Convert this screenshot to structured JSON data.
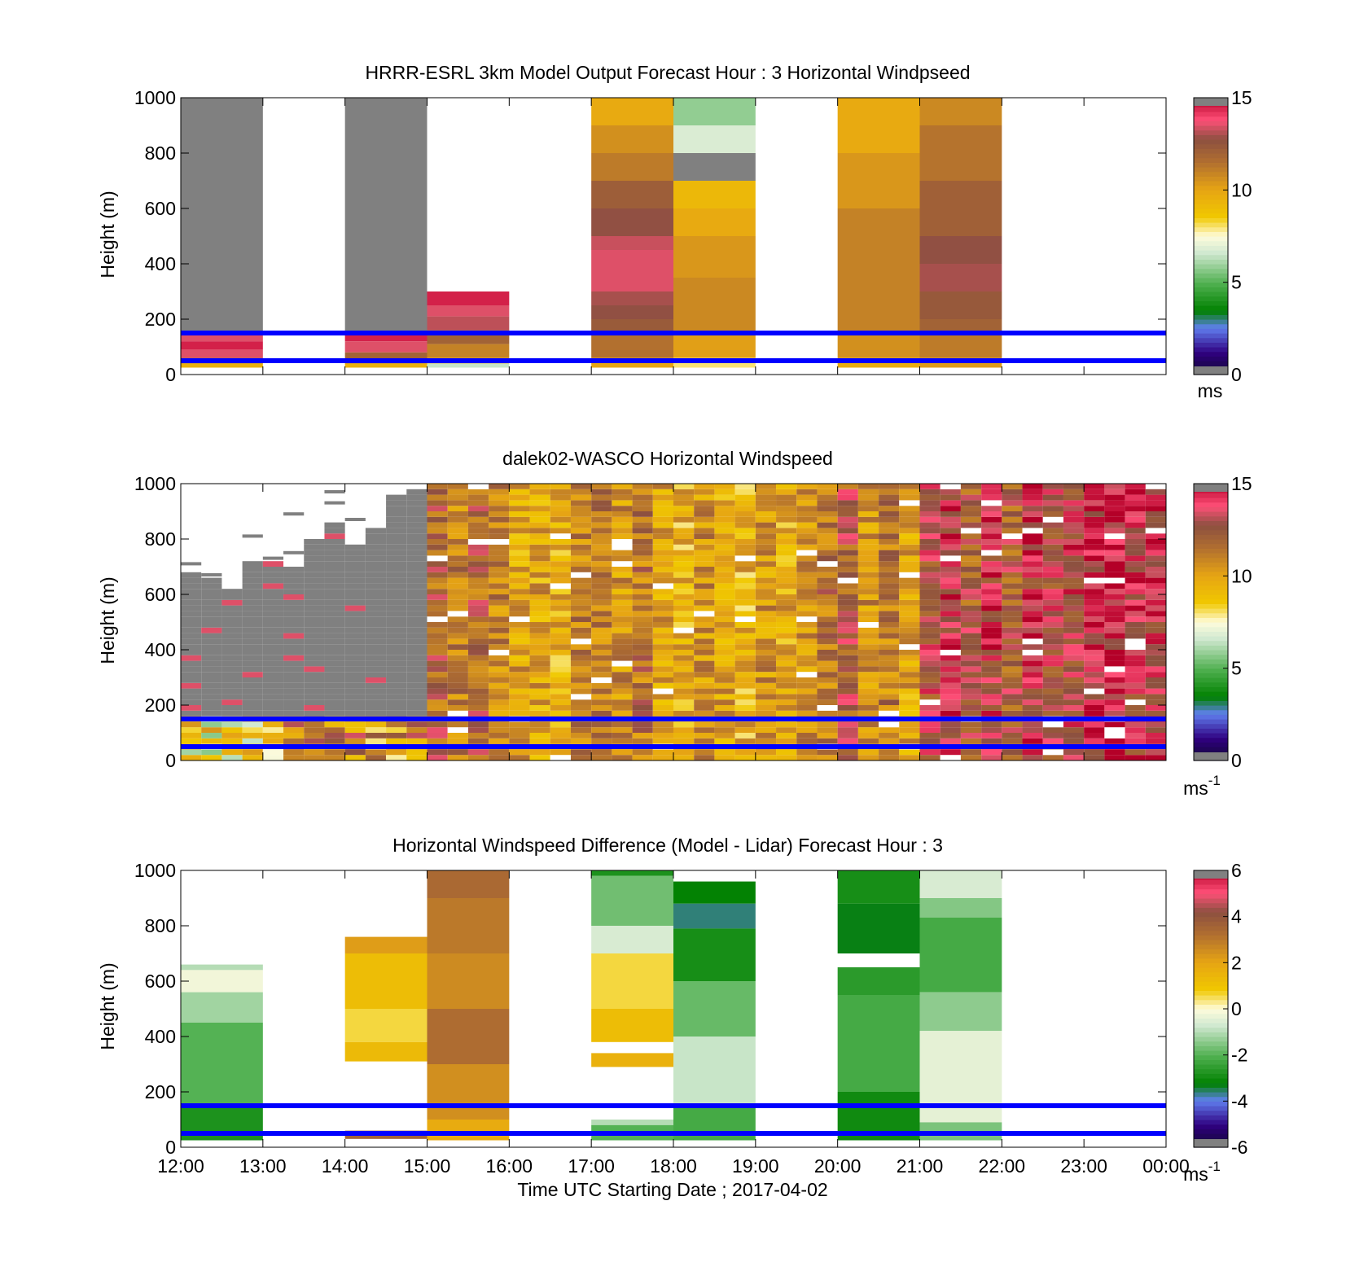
{
  "figure": {
    "xlabel": "Time UTC  Starting Date ; 2017-04-02",
    "x_tick_labels": [
      "12:00",
      "13:00",
      "14:00",
      "15:00",
      "16:00",
      "17:00",
      "18:00",
      "19:00",
      "20:00",
      "21:00",
      "22:00",
      "23:00",
      "00:00"
    ],
    "marker_line_color": "#0000ff"
  },
  "chart_data": [
    {
      "type": "heatmap",
      "title": "HRRR-ESRL 3km Model Output   Forecast Hour : 3 Horizontal Windpseed",
      "ylabel": "Height (m)",
      "ylim": [
        0,
        1000
      ],
      "y_ticks": [
        0,
        200,
        400,
        600,
        800,
        1000
      ],
      "xlim_hours": [
        12,
        24
      ],
      "reference_heights_m": [
        50,
        150
      ],
      "colorbar": {
        "min": 0,
        "max": 15,
        "ticks": [
          0,
          5,
          10,
          15
        ],
        "unit": "ms"
      },
      "columns": [
        {
          "start": "12:00",
          "end": "13:00",
          "segments": [
            {
              "from": 150,
              "to": 1000,
              "value": "missing"
            },
            {
              "from": 120,
              "to": 150,
              "value": 13.5
            },
            {
              "from": 90,
              "to": 120,
              "value": 14.5
            },
            {
              "from": 60,
              "to": 90,
              "value": 13.5
            },
            {
              "from": 40,
              "to": 60,
              "value": 12
            },
            {
              "from": 25,
              "to": 40,
              "value": 9.5
            }
          ]
        },
        {
          "start": "14:00",
          "end": "15:00",
          "segments": [
            {
              "from": 150,
              "to": 1000,
              "value": "missing"
            },
            {
              "from": 120,
              "to": 150,
              "value": 14.5
            },
            {
              "from": 80,
              "to": 120,
              "value": 13.5
            },
            {
              "from": 40,
              "to": 80,
              "value": 12
            },
            {
              "from": 25,
              "to": 40,
              "value": 9.5
            }
          ]
        },
        {
          "start": "15:00",
          "end": "16:00",
          "segments": [
            {
              "from": 250,
              "to": 300,
              "value": 14.5
            },
            {
              "from": 210,
              "to": 250,
              "value": 13.5
            },
            {
              "from": 160,
              "to": 210,
              "value": 13.2
            },
            {
              "from": 110,
              "to": 160,
              "value": 12
            },
            {
              "from": 60,
              "to": 110,
              "value": 11
            },
            {
              "from": 40,
              "to": 60,
              "value": 10
            },
            {
              "from": 25,
              "to": 40,
              "value": 6.5
            }
          ]
        },
        {
          "start": "17:00",
          "end": "18:00",
          "segments": [
            {
              "from": 900,
              "to": 1000,
              "value": 9.8
            },
            {
              "from": 800,
              "to": 900,
              "value": 10.6
            },
            {
              "from": 700,
              "to": 800,
              "value": 11.2
            },
            {
              "from": 600,
              "to": 700,
              "value": 12.2
            },
            {
              "from": 500,
              "to": 600,
              "value": 12.8
            },
            {
              "from": 450,
              "to": 500,
              "value": 13.3
            },
            {
              "from": 300,
              "to": 450,
              "value": 13.5
            },
            {
              "from": 250,
              "to": 300,
              "value": 13
            },
            {
              "from": 200,
              "to": 250,
              "value": 12.8
            },
            {
              "from": 150,
              "to": 200,
              "value": 12.3
            },
            {
              "from": 60,
              "to": 150,
              "value": 11.5
            },
            {
              "from": 25,
              "to": 60,
              "value": 10
            }
          ]
        },
        {
          "start": "18:00",
          "end": "19:00",
          "segments": [
            {
              "from": 900,
              "to": 1000,
              "value": 5.8
            },
            {
              "from": 800,
              "to": 900,
              "value": 6.8
            },
            {
              "from": 700,
              "to": 800,
              "value": "missing"
            },
            {
              "from": 600,
              "to": 700,
              "value": 9.2
            },
            {
              "from": 500,
              "to": 600,
              "value": 9.8
            },
            {
              "from": 350,
              "to": 500,
              "value": 10.4
            },
            {
              "from": 150,
              "to": 350,
              "value": 10.8
            },
            {
              "from": 60,
              "to": 150,
              "value": 10.2
            },
            {
              "from": 25,
              "to": 60,
              "value": 8
            }
          ]
        },
        {
          "start": "20:00",
          "end": "21:00",
          "segments": [
            {
              "from": 800,
              "to": 1000,
              "value": 9.8
            },
            {
              "from": 600,
              "to": 800,
              "value": 10.4
            },
            {
              "from": 150,
              "to": 600,
              "value": 11
            },
            {
              "from": 60,
              "to": 150,
              "value": 10.6
            },
            {
              "from": 25,
              "to": 60,
              "value": 9.7
            }
          ]
        },
        {
          "start": "21:00",
          "end": "22:00",
          "segments": [
            {
              "from": 900,
              "to": 1000,
              "value": 10.8
            },
            {
              "from": 700,
              "to": 900,
              "value": 11.4
            },
            {
              "from": 500,
              "to": 700,
              "value": 12.1
            },
            {
              "from": 400,
              "to": 500,
              "value": 12.8
            },
            {
              "from": 300,
              "to": 400,
              "value": 13
            },
            {
              "from": 200,
              "to": 300,
              "value": 12.4
            },
            {
              "from": 150,
              "to": 200,
              "value": 12
            },
            {
              "from": 60,
              "to": 150,
              "value": 11.2
            },
            {
              "from": 25,
              "to": 60,
              "value": 10.3
            }
          ]
        }
      ]
    },
    {
      "type": "heatmap",
      "title": "dalek02-WASCO  Horizontal Windspeed",
      "ylabel": "Height (m)",
      "ylim": [
        0,
        1000
      ],
      "y_ticks": [
        0,
        200,
        400,
        600,
        800,
        1000
      ],
      "xlim_hours": [
        12,
        24
      ],
      "reference_heights_m": [
        50,
        150
      ],
      "colorbar": {
        "min": 0,
        "max": 15,
        "ticks": [
          0,
          5,
          10,
          15
        ],
        "unit": "ms",
        "unit_exponent": "-1"
      },
      "column_width_hours": 0.25,
      "columns": [
        {
          "start": "12:00",
          "top": 680,
          "base": 8
        },
        {
          "start": "12:15",
          "top": 670,
          "base": 8
        },
        {
          "start": "12:30",
          "top": 630,
          "base": 8
        },
        {
          "start": "12:45",
          "top": 720,
          "base": 8
        },
        {
          "start": "13:00",
          "top": 730,
          "base": 8
        },
        {
          "start": "13:15",
          "top": 700,
          "base": 12
        },
        {
          "start": "13:30",
          "top": 800,
          "base": 11
        },
        {
          "start": "13:45",
          "top": 860,
          "base": 11
        },
        {
          "start": "14:00",
          "top": 790,
          "base": 11
        },
        {
          "start": "14:15",
          "top": 840,
          "base": 10
        },
        {
          "start": "14:30",
          "top": 970,
          "base": 10
        },
        {
          "start": "14:45",
          "top": 990,
          "base": 11
        },
        {
          "start": "15:00",
          "top": 1000,
          "base": 12
        },
        {
          "start": "15:15",
          "top": 1000,
          "base": 11
        },
        {
          "start": "15:30",
          "top": 1000,
          "base": 12
        },
        {
          "start": "15:45",
          "top": 1000,
          "base": 11
        },
        {
          "start": "16:00",
          "top": 1000,
          "base": 10
        },
        {
          "start": "16:15",
          "top": 1000,
          "base": 10
        },
        {
          "start": "16:30",
          "top": 1000,
          "base": 9.5
        },
        {
          "start": "16:45",
          "top": 1000,
          "base": 11
        },
        {
          "start": "17:00",
          "top": 1000,
          "base": 11
        },
        {
          "start": "17:15",
          "top": 1000,
          "base": 10.5
        },
        {
          "start": "17:30",
          "top": 1000,
          "base": 11.5
        },
        {
          "start": "17:45",
          "top": 1000,
          "base": 10
        },
        {
          "start": "18:00",
          "top": 1000,
          "base": 9.5
        },
        {
          "start": "18:15",
          "top": 1000,
          "base": 10.5
        },
        {
          "start": "18:30",
          "top": 1000,
          "base": 10
        },
        {
          "start": "18:45",
          "top": 1000,
          "base": 9.5
        },
        {
          "start": "19:00",
          "top": 1000,
          "base": 10.5
        },
        {
          "start": "19:15",
          "top": 1000,
          "base": 9.8
        },
        {
          "start": "19:30",
          "top": 1000,
          "base": 10.6
        },
        {
          "start": "19:45",
          "top": 1000,
          "base": 11.5
        },
        {
          "start": "20:00",
          "top": 1000,
          "base": 12.5
        },
        {
          "start": "20:15",
          "top": 1000,
          "base": 10.5
        },
        {
          "start": "20:30",
          "top": 1000,
          "base": 11.2
        },
        {
          "start": "20:45",
          "top": 1000,
          "base": 10
        },
        {
          "start": "21:00",
          "top": 1000,
          "base": 13
        },
        {
          "start": "21:15",
          "top": 1000,
          "base": 13.8
        },
        {
          "start": "21:30",
          "top": 1000,
          "base": 12.3
        },
        {
          "start": "21:45",
          "top": 1000,
          "base": 13.6
        },
        {
          "start": "22:00",
          "top": 1000,
          "base": 12.4
        },
        {
          "start": "22:15",
          "top": 1000,
          "base": 13.7
        },
        {
          "start": "22:30",
          "top": 1000,
          "base": 12.9
        },
        {
          "start": "22:45",
          "top": 1000,
          "base": 13.4
        },
        {
          "start": "23:00",
          "top": 1000,
          "base": 13.9
        },
        {
          "start": "23:15",
          "top": 1000,
          "base": 14.3
        },
        {
          "start": "23:30",
          "top": 1000,
          "base": 13.5
        },
        {
          "start": "23:45",
          "top": 990,
          "base": 13.8
        }
      ]
    },
    {
      "type": "heatmap",
      "title": "Horizontal Windspeed Difference (Model - Lidar) Forecast Hour : 3",
      "ylabel": "Height (m)",
      "ylim": [
        0,
        1000
      ],
      "y_ticks": [
        0,
        200,
        400,
        600,
        800,
        1000
      ],
      "xlim_hours": [
        12,
        24
      ],
      "reference_heights_m": [
        50,
        150
      ],
      "colorbar": {
        "min": -6,
        "max": 6,
        "ticks": [
          -6,
          -4,
          -2,
          0,
          2,
          4,
          6
        ],
        "unit": "ms",
        "unit_exponent": "-1"
      },
      "columns": [
        {
          "start": "12:00",
          "end": "13:00",
          "segments": [
            {
              "from": 640,
              "to": 660,
              "value": -1
            },
            {
              "from": 560,
              "to": 640,
              "value": -0.2
            },
            {
              "from": 450,
              "to": 560,
              "value": -1.2
            },
            {
              "from": 150,
              "to": 450,
              "value": -2
            },
            {
              "from": 25,
              "to": 150,
              "value": -2.8
            }
          ]
        },
        {
          "start": "14:00",
          "end": "15:00",
          "segments": [
            {
              "from": 700,
              "to": 760,
              "value": 2.2
            },
            {
              "from": 500,
              "to": 700,
              "value": 1.2
            },
            {
              "from": 380,
              "to": 500,
              "value": 0.6
            },
            {
              "from": 310,
              "to": 380,
              "value": 1.3
            },
            {
              "from": 30,
              "to": 60,
              "value": 3.6
            }
          ]
        },
        {
          "start": "15:00",
          "end": "16:00",
          "segments": [
            {
              "from": 900,
              "to": 1000,
              "value": 3.4
            },
            {
              "from": 700,
              "to": 900,
              "value": 3
            },
            {
              "from": 500,
              "to": 700,
              "value": 2.6
            },
            {
              "from": 300,
              "to": 500,
              "value": 3.3
            },
            {
              "from": 100,
              "to": 300,
              "value": 2.5
            },
            {
              "from": 25,
              "to": 100,
              "value": 1.8
            }
          ]
        },
        {
          "start": "17:00",
          "end": "18:00",
          "segments": [
            {
              "from": 980,
              "to": 1000,
              "value": -2.8
            },
            {
              "from": 800,
              "to": 980,
              "value": -1.7
            },
            {
              "from": 700,
              "to": 800,
              "value": -0.6
            },
            {
              "from": 500,
              "to": 700,
              "value": 0.6
            },
            {
              "from": 380,
              "to": 500,
              "value": 1.2
            },
            {
              "from": 290,
              "to": 340,
              "value": 1.6
            },
            {
              "from": 80,
              "to": 100,
              "value": -1
            },
            {
              "from": 25,
              "to": 80,
              "value": -2
            }
          ]
        },
        {
          "start": "18:00",
          "end": "19:00",
          "segments": [
            {
              "from": 880,
              "to": 960,
              "value": -3.2
            },
            {
              "from": 790,
              "to": 880,
              "value": -3.6
            },
            {
              "from": 600,
              "to": 790,
              "value": -2.9
            },
            {
              "from": 400,
              "to": 600,
              "value": -1.8
            },
            {
              "from": 150,
              "to": 400,
              "value": -0.8
            },
            {
              "from": 25,
              "to": 150,
              "value": -2.2
            }
          ]
        },
        {
          "start": "20:00",
          "end": "21:00",
          "segments": [
            {
              "from": 880,
              "to": 1000,
              "value": -2.9
            },
            {
              "from": 700,
              "to": 880,
              "value": -3.3
            },
            {
              "from": 550,
              "to": 650,
              "value": -2.6
            },
            {
              "from": 200,
              "to": 550,
              "value": -2.2
            },
            {
              "from": 25,
              "to": 200,
              "value": -3
            }
          ]
        },
        {
          "start": "21:00",
          "end": "22:00",
          "segments": [
            {
              "from": 900,
              "to": 1000,
              "value": -0.6
            },
            {
              "from": 830,
              "to": 900,
              "value": -1.5
            },
            {
              "from": 560,
              "to": 830,
              "value": -2.2
            },
            {
              "from": 420,
              "to": 560,
              "value": -1.4
            },
            {
              "from": 90,
              "to": 420,
              "value": -0.4
            },
            {
              "from": 25,
              "to": 90,
              "value": -1.6
            }
          ]
        }
      ]
    }
  ]
}
